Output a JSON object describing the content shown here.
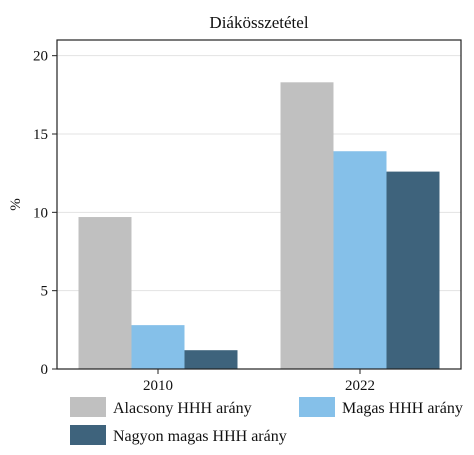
{
  "chart_data": {
    "type": "bar",
    "title": "Diákösszetétel",
    "xlabel": "",
    "ylabel": "%",
    "categories": [
      "2010",
      "2022"
    ],
    "series": [
      {
        "name": "Alacsony HHH arány",
        "values": [
          9.7,
          18.3
        ],
        "color": "#c0c0c0"
      },
      {
        "name": "Magas HHH arány",
        "values": [
          2.8,
          13.9
        ],
        "color": "#85c0e9"
      },
      {
        "name": "Nagyon magas HHH arány",
        "values": [
          1.2,
          12.6
        ],
        "color": "#3e637c"
      }
    ],
    "ylim": [
      0,
      21
    ],
    "yticks": [
      0,
      5,
      10,
      15,
      20
    ],
    "grid": true,
    "legend_position": "bottom"
  }
}
